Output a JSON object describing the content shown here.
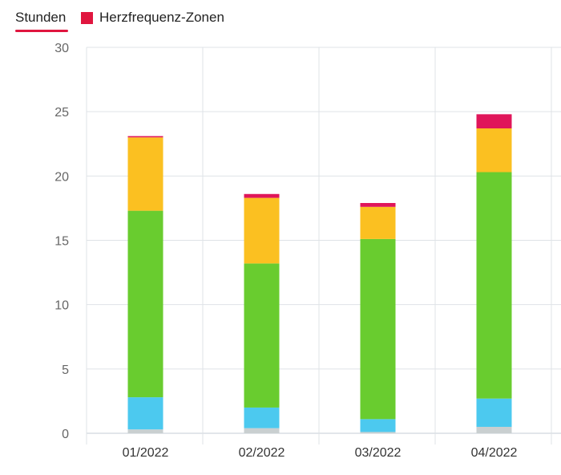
{
  "tab": {
    "label": "Stunden"
  },
  "legend": {
    "label": "Herzfrequenz-Zonen",
    "color": "#e0163f"
  },
  "chart_data": {
    "type": "bar",
    "stacked": true,
    "title": "",
    "xlabel": "",
    "ylabel": "",
    "ylim": [
      0,
      30
    ],
    "yticks": [
      0,
      5,
      10,
      15,
      20,
      25,
      30
    ],
    "grid": true,
    "categories": [
      "01/2022",
      "02/2022",
      "03/2022",
      "04/2022"
    ],
    "series": [
      {
        "color": "#c9cfd0",
        "values": [
          0.3,
          0.4,
          0.1,
          0.5
        ]
      },
      {
        "color": "#4cc9ef",
        "values": [
          2.5,
          1.6,
          1.0,
          2.2
        ]
      },
      {
        "color": "#69cc2f",
        "values": [
          14.5,
          11.2,
          14.0,
          17.6
        ]
      },
      {
        "color": "#fbc021",
        "values": [
          5.7,
          5.1,
          2.5,
          3.4
        ]
      },
      {
        "color": "#e0165a",
        "values": [
          0.1,
          0.3,
          0.3,
          1.1
        ]
      }
    ]
  }
}
